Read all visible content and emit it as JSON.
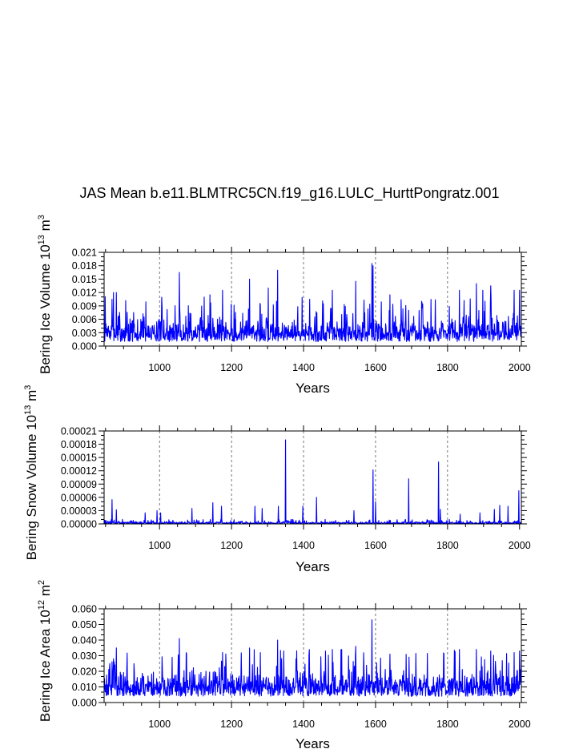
{
  "title": "JAS Mean b.e11.BLMTRC5CN.f19_g16.LULC_HurttPongratz.001",
  "colors": {
    "series": "#0000ff",
    "axis": "#000000",
    "grid": "#555555"
  },
  "chart_data": [
    {
      "type": "line",
      "title": "",
      "xlabel": "Years",
      "ylabel": "Bering Ice Volume 10",
      "ylabel_exponent": "13",
      "ylabel_unit": " m",
      "ylabel_unit_exponent": "3",
      "xlim": [
        846,
        2005
      ],
      "ylim": [
        0,
        0.021
      ],
      "xticks": [
        1000,
        1200,
        1400,
        1600,
        1800,
        2000
      ],
      "xtick_labels": [
        "1000",
        "1200",
        "1400",
        "1600",
        "1800",
        "2000"
      ],
      "yticks": [
        0,
        0.003,
        0.006,
        0.009,
        0.012,
        0.015,
        0.018,
        0.021
      ],
      "ytick_labels": [
        "0.000",
        "0.003",
        "0.006",
        "0.009",
        "0.012",
        "0.015",
        "0.018",
        "0.021"
      ],
      "grid_x": true,
      "series": [
        {
          "name": "Bering Ice Volume",
          "color": "#0000ff",
          "peaks": [
            [
              868,
              0.0105
            ],
            [
              872,
              0.012
            ],
            [
              880,
              0.012
            ],
            [
              1055,
              0.0165
            ],
            [
              1140,
              0.0115
            ],
            [
              1175,
              0.0125
            ],
            [
              1250,
              0.015
            ],
            [
              1328,
              0.017
            ],
            [
              1302,
              0.013
            ],
            [
              1480,
              0.0125
            ],
            [
              1545,
              0.0145
            ],
            [
              1590,
              0.0185
            ],
            [
              1593,
              0.018
            ],
            [
              1640,
              0.0115
            ],
            [
              1730,
              0.0085
            ],
            [
              1833,
              0.0125
            ],
            [
              1880,
              0.014
            ],
            [
              1898,
              0.0125
            ],
            [
              1920,
              0.0135
            ],
            [
              1985,
              0.0125
            ],
            [
              2000,
              0.0125
            ]
          ],
          "base_min": 0.001,
          "base_max": 0.007,
          "seed": 7
        }
      ]
    },
    {
      "type": "line",
      "title": "",
      "xlabel": "Years",
      "ylabel": "Bering Snow Volume 10",
      "ylabel_exponent": "13",
      "ylabel_unit": " m",
      "ylabel_unit_exponent": "3",
      "xlim": [
        846,
        2005
      ],
      "ylim": [
        0,
        0.00021
      ],
      "xticks": [
        1000,
        1200,
        1400,
        1600,
        1800,
        2000
      ],
      "xtick_labels": [
        "1000",
        "1200",
        "1400",
        "1600",
        "1800",
        "2000"
      ],
      "yticks": [
        0,
        3e-05,
        6e-05,
        9e-05,
        0.00012,
        0.00015,
        0.00018,
        0.00021
      ],
      "ytick_labels": [
        "0.00000",
        "0.00003",
        "0.00006",
        "0.00009",
        "0.00012",
        "0.00015",
        "0.00018",
        "0.00021"
      ],
      "grid_x": true,
      "series": [
        {
          "name": "Bering Snow Volume",
          "color": "#0000ff",
          "peaks": [
            [
              868,
              5.5e-05
            ],
            [
              880,
              3.2e-05
            ],
            [
              960,
              2.5e-05
            ],
            [
              993,
              3e-05
            ],
            [
              1003,
              2.5e-05
            ],
            [
              1090,
              3.5e-05
            ],
            [
              1148,
              4.8e-05
            ],
            [
              1172,
              4e-05
            ],
            [
              1265,
              4e-05
            ],
            [
              1285,
              3.5e-05
            ],
            [
              1330,
              4e-05
            ],
            [
              1350,
              0.00019
            ],
            [
              1398,
              4e-05
            ],
            [
              1436,
              6e-05
            ],
            [
              1540,
              3e-05
            ],
            [
              1593,
              0.000122
            ],
            [
              1600,
              5e-05
            ],
            [
              1692,
              0.000102
            ],
            [
              1775,
              0.00014
            ],
            [
              1780,
              3.3e-05
            ],
            [
              1835,
              2.2e-05
            ],
            [
              1890,
              2.5e-05
            ],
            [
              1930,
              3.3e-05
            ],
            [
              1945,
              4.2e-05
            ],
            [
              1968,
              4e-05
            ],
            [
              1998,
              7.5e-05
            ]
          ],
          "base_min": 0,
          "base_max": 6e-06,
          "seed": 13
        }
      ]
    },
    {
      "type": "line",
      "title": "",
      "xlabel": "Years",
      "ylabel": "Bering Ice Area 10",
      "ylabel_exponent": "12",
      "ylabel_unit": " m",
      "ylabel_unit_exponent": "2",
      "xlim": [
        846,
        2005
      ],
      "ylim": [
        0,
        0.06
      ],
      "xticks": [
        1000,
        1200,
        1400,
        1600,
        1800,
        2000
      ],
      "xtick_labels": [
        "1000",
        "1200",
        "1400",
        "1600",
        "1800",
        "2000"
      ],
      "yticks": [
        0,
        0.01,
        0.02,
        0.03,
        0.04,
        0.05,
        0.06
      ],
      "ytick_labels": [
        "0.000",
        "0.010",
        "0.020",
        "0.030",
        "0.040",
        "0.050",
        "0.060"
      ],
      "grid_x": true,
      "series": [
        {
          "name": "Bering Ice Area",
          "color": "#0000ff",
          "peaks": [
            [
              862,
              0.025
            ],
            [
              872,
              0.028
            ],
            [
              880,
              0.035
            ],
            [
              1055,
              0.041
            ],
            [
              1175,
              0.032
            ],
            [
              1250,
              0.035
            ],
            [
              1328,
              0.04
            ],
            [
              1345,
              0.033
            ],
            [
              1480,
              0.034
            ],
            [
              1545,
              0.036
            ],
            [
              1590,
              0.053
            ],
            [
              1640,
              0.031
            ],
            [
              1833,
              0.034
            ],
            [
              1880,
              0.034
            ],
            [
              1920,
              0.033
            ],
            [
              1985,
              0.032
            ],
            [
              2000,
              0.033
            ]
          ],
          "base_min": 0.004,
          "base_max": 0.022,
          "seed": 23
        }
      ]
    }
  ]
}
